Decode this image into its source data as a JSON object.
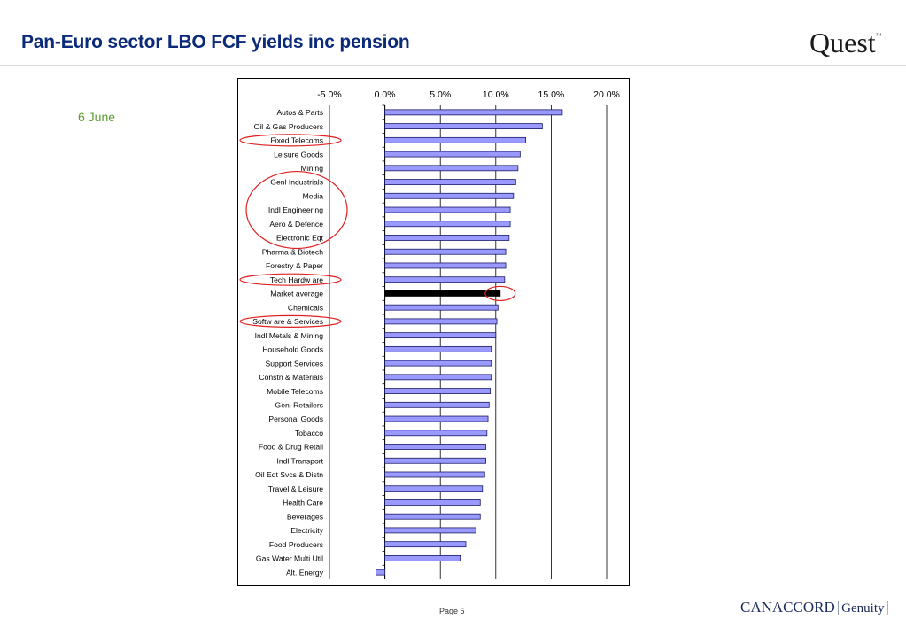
{
  "header": {
    "title": "Pan-Euro sector LBO FCF yields inc pension",
    "logo": "Quest",
    "logo_tm": "™"
  },
  "side_label": "6 June",
  "footer": {
    "page": "Page 5",
    "logo_left": "CANACCORD",
    "logo_right": "Genuity"
  },
  "colors": {
    "bar_fill": "#9999ff",
    "bar_stroke": "#1a1a66",
    "highlight_fill": "#000000",
    "circle_stroke": "#e02020",
    "title": "#0b2a7a",
    "side_label": "#5a9e32"
  },
  "chart_data": {
    "type": "bar",
    "orientation": "horizontal",
    "title": "",
    "xlabel": "",
    "ylabel": "",
    "xlim": [
      -5,
      20
    ],
    "x_ticks": [
      -5,
      0,
      5,
      10,
      15,
      20
    ],
    "x_tick_labels": [
      "-5.0%",
      "0.0%",
      "5.0%",
      "10.0%",
      "15.0%",
      "20.0%"
    ],
    "x_axis_position": "top",
    "grid": "vertical",
    "categories": [
      "Autos & Parts",
      "Oil & Gas Producers",
      "Fixed Telecoms",
      "Leisure Goods",
      "Mining",
      "Genl Industrials",
      "Media",
      "Indl Engineering",
      "Aero & Defence",
      "Electronic Eqt",
      "Pharma & Biotech",
      "Forestry & Paper",
      "Tech Hardw are",
      "Market average",
      "Chemicals",
      "Softw are & Services",
      "Indl Metals & Mining",
      "Household Goods",
      "Support Services",
      "Constn & Materials",
      "Mobile Telecoms",
      "Genl Retailers",
      "Personal Goods",
      "Tobacco",
      "Food & Drug Retail",
      "Indl Transport",
      "Oil Eqt Svcs & Distn",
      "Travel & Leisure",
      "Health Care",
      "Beverages",
      "Electricity",
      "Food Producers",
      "Gas Water Multi Util",
      "Alt. Energy"
    ],
    "values": [
      16.0,
      14.2,
      12.7,
      12.2,
      12.0,
      11.8,
      11.6,
      11.3,
      11.3,
      11.2,
      10.9,
      10.9,
      10.8,
      10.4,
      10.2,
      10.1,
      10.0,
      9.6,
      9.6,
      9.6,
      9.5,
      9.4,
      9.3,
      9.2,
      9.1,
      9.1,
      9.0,
      8.8,
      8.6,
      8.6,
      8.2,
      7.3,
      6.8,
      -0.8
    ],
    "highlight": [
      "Market average"
    ],
    "annotations": {
      "circled_labels": [
        "Fixed Telecoms",
        "Tech Hardw are",
        "Softw are & Services"
      ],
      "circled_label_group": [
        "Genl Industrials",
        "Media",
        "Indl Engineering",
        "Aero & Defence",
        "Electronic Eqt"
      ],
      "circled_bar_end": "Market average"
    }
  }
}
